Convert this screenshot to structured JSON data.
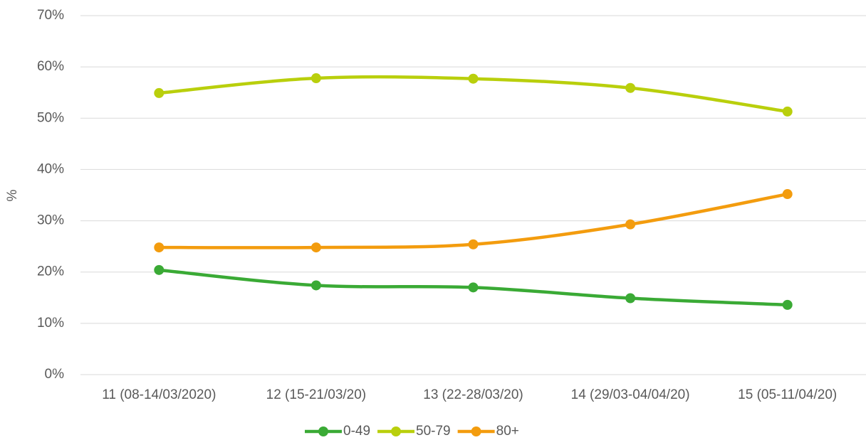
{
  "chart_data": {
    "type": "line",
    "y_label": "%",
    "categories": [
      "11 (08-14/03/2020)",
      "12 (15-21/03/20)",
      "13 (22-28/03/20)",
      "14 (29/03-04/04/20)",
      "15 (05-11/04/20)"
    ],
    "series": [
      {
        "name": "0-49",
        "color": "#3aaa35",
        "values": [
          20.4,
          17.4,
          17.0,
          14.9,
          13.6
        ]
      },
      {
        "name": "50-79",
        "color": "#b9cf0c",
        "values": [
          54.9,
          57.8,
          57.7,
          55.9,
          51.3
        ]
      },
      {
        "name": "80+",
        "color": "#f39c0e",
        "values": [
          24.8,
          24.8,
          25.4,
          29.3,
          35.2
        ]
      }
    ],
    "ylim": [
      0,
      70
    ],
    "yticks": [
      {
        "value": 0,
        "label": "0%"
      },
      {
        "value": 10,
        "label": "10%"
      },
      {
        "value": 20,
        "label": "20%"
      },
      {
        "value": 30,
        "label": "30%"
      },
      {
        "value": 40,
        "label": "40%"
      },
      {
        "value": 50,
        "label": "50%"
      },
      {
        "value": 60,
        "label": "60%"
      },
      {
        "value": 70,
        "label": "70%"
      }
    ],
    "grid": true,
    "legend": "bottom"
  }
}
